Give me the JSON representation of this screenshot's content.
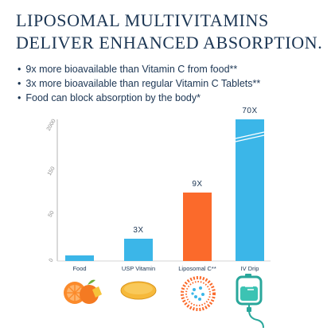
{
  "headline": {
    "line1": "LIPOSOMAL MULTIVITAMINS",
    "line2": "DELIVER ENHANCED ABSORPTION."
  },
  "bullets": [
    "9x more bioavailable than Vitamin C from food**",
    "3x more bioavailable than regular Vitamin C Tablets**",
    "Food can block absorption by the body*"
  ],
  "colors": {
    "text": "#1b3553",
    "blue": "#3bb6e8",
    "orange": "#fb6a2b",
    "axis": "#b3b3b3"
  },
  "icons": [
    "orange-fruit-icon",
    "tablet-icon",
    "liposome-icon",
    "iv-bag-icon"
  ],
  "chart_data": {
    "type": "bar",
    "categories": [
      "Food",
      "USP Vitamin",
      "Liposomal C**",
      "IV Drip"
    ],
    "values": [
      1,
      3,
      9,
      70
    ],
    "value_labels": [
      "",
      "3X",
      "9X",
      "70X"
    ],
    "bar_colors": [
      "#3bb6e8",
      "#3bb6e8",
      "#fb6a2b",
      "#3bb6e8"
    ],
    "axis_break": true,
    "yticks": [
      {
        "label": "0",
        "value": 0
      },
      {
        "label": "50",
        "value": 50
      },
      {
        "label": "150",
        "value": 150
      },
      {
        "label": "2000",
        "value": 2000
      }
    ],
    "title": "",
    "xlabel": "",
    "ylabel": "",
    "grid": false
  }
}
